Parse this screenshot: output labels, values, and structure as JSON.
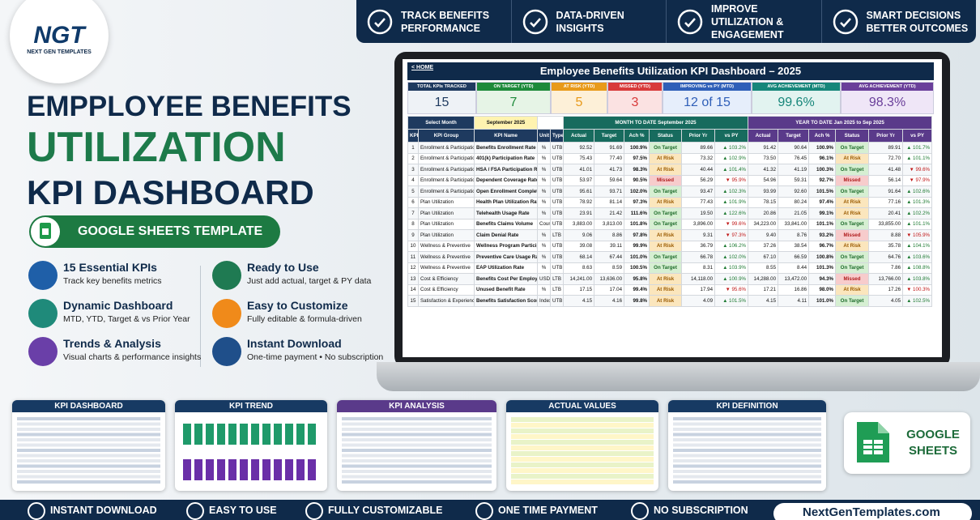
{
  "logo": {
    "mark": "NGT",
    "name": "NEXT GEN TEMPLATES"
  },
  "top_badges": [
    "TRACK BENEFITS PERFORMANCE",
    "DATA-DRIVEN INSIGHTS",
    "IMPROVE UTILIZATION & ENGAGEMENT",
    "SMART DECISIONS BETTER OUTCOMES"
  ],
  "headline": [
    "EMPPLOYEE BENEFITS",
    "UTILIZATION",
    "KPI DASHBOARD"
  ],
  "template_badge": "GOOGLE SHEETS TEMPLATE",
  "features": [
    {
      "title": "15 Essential KPIs",
      "text": "Track key benefits metrics"
    },
    {
      "title": "Dynamic Dashboard",
      "text": "MTD, YTD, Target & vs Prior Year"
    },
    {
      "title": "Trends & Analysis",
      "text": "Visual charts & performance insights"
    },
    {
      "title": "Ready to Use",
      "text": "Just add actual, target & PY data"
    },
    {
      "title": "Easy to Customize",
      "text": "Fully editable & formula-driven"
    },
    {
      "title": "Instant Download",
      "text": "One-time payment • No subscription"
    }
  ],
  "dashboard": {
    "home": "< HOME",
    "title": "Employee Benefits Utilization KPI Dashboard  –  2025",
    "cards": [
      {
        "label": "TOTAL KPIs TRACKED",
        "value": 15
      },
      {
        "label": "ON TARGET (YTD)",
        "value": 7
      },
      {
        "label": "AT RISK (YTD)",
        "value": 5
      },
      {
        "label": "MISSED (YTD)",
        "value": 3
      },
      {
        "label": "IMPROVING vs PY (MTD)",
        "value": "12 of 15"
      },
      {
        "label": "AVG ACHIEVEMENT (MTD)",
        "value": "99.6%"
      },
      {
        "label": "AVG ACHIEVEMENT (YTD)",
        "value": "98.3%"
      }
    ],
    "select_month_label": "Select Month",
    "month": "September 2025",
    "mtd_label": "MONTH TO DATE",
    "mtd_period": "September 2025",
    "ytd_label": "YEAR TO DATE",
    "ytd_period": "Jan 2025 to Sep 2025",
    "columns": [
      "KPI #",
      "KPI Group",
      "KPI Name",
      "Unit",
      "Type",
      "Actual",
      "Target",
      "Ach %",
      "Status",
      "Prior Yr",
      "vs PY",
      "Actual",
      "Target",
      "Ach %",
      "Status",
      "Prior Yr",
      "vs PY"
    ],
    "rows": [
      [
        "1",
        "Enrollment & Participation",
        "Benefits Enrollment Rate",
        "%",
        "UTB",
        "92.52",
        "91.69",
        "100.9%",
        "On Target",
        "89.66",
        "▲ 103.2%",
        "91.42",
        "90.64",
        "100.9%",
        "On Target",
        "89.91",
        "▲ 101.7%"
      ],
      [
        "2",
        "Enrollment & Participation",
        "401(k) Participation Rate",
        "%",
        "UTB",
        "75.43",
        "77.40",
        "97.5%",
        "At Risk",
        "73.32",
        "▲ 102.9%",
        "73.50",
        "76.45",
        "96.1%",
        "At Risk",
        "72.70",
        "▲ 101.1%"
      ],
      [
        "3",
        "Enrollment & Participation",
        "HSA / FSA Participation Rate",
        "%",
        "UTB",
        "41.01",
        "41.73",
        "98.3%",
        "At Risk",
        "40.44",
        "▲ 101.4%",
        "41.32",
        "41.19",
        "100.3%",
        "On Target",
        "41.48",
        "▼ 99.6%"
      ],
      [
        "4",
        "Enrollment & Participation",
        "Dependent Coverage Rate",
        "%",
        "UTB",
        "53.97",
        "59.64",
        "90.5%",
        "Missed",
        "56.29",
        "▼ 95.9%",
        "54.96",
        "59.31",
        "92.7%",
        "Missed",
        "56.14",
        "▼ 97.9%"
      ],
      [
        "5",
        "Enrollment & Participation",
        "Open Enrollment Completion Rate",
        "%",
        "UTB",
        "95.61",
        "93.71",
        "102.0%",
        "On Target",
        "93.47",
        "▲ 102.3%",
        "93.99",
        "92.60",
        "101.5%",
        "On Target",
        "91.64",
        "▲ 102.6%"
      ],
      [
        "6",
        "Plan Utilization",
        "Health Plan Utilization Rate",
        "%",
        "UTB",
        "78.92",
        "81.14",
        "97.3%",
        "At Risk",
        "77.43",
        "▲ 101.9%",
        "78.15",
        "80.24",
        "97.4%",
        "At Risk",
        "77.16",
        "▲ 101.3%"
      ],
      [
        "7",
        "Plan Utilization",
        "Telehealth Usage Rate",
        "%",
        "UTB",
        "23.91",
        "21.42",
        "111.6%",
        "On Target",
        "19.50",
        "▲ 122.6%",
        "20.86",
        "21.05",
        "99.1%",
        "At Risk",
        "20.41",
        "▲ 102.2%"
      ],
      [
        "8",
        "Plan Utilization",
        "Benefits Claims Volume",
        "Count",
        "UTB",
        "3,883.00",
        "3,813.00",
        "101.8%",
        "On Target",
        "3,896.00",
        "▼ 99.6%",
        "34,223.00",
        "33,841.00",
        "101.1%",
        "On Target",
        "33,855.00",
        "▲ 101.1%"
      ],
      [
        "9",
        "Plan Utilization",
        "Claim Denial Rate",
        "%",
        "LTB",
        "9.06",
        "8.86",
        "97.8%",
        "At Risk",
        "9.31",
        "▼ 97.3%",
        "9.40",
        "8.76",
        "93.2%",
        "Missed",
        "8.88",
        "▼ 105.9%"
      ],
      [
        "10",
        "Wellness & Preventive",
        "Wellness Program Participation",
        "%",
        "UTB",
        "39.08",
        "39.11",
        "99.9%",
        "At Risk",
        "36.79",
        "▲ 106.2%",
        "37.26",
        "38.54",
        "96.7%",
        "At Risk",
        "35.78",
        "▲ 104.1%"
      ],
      [
        "11",
        "Wellness & Preventive",
        "Preventive Care Usage Rate",
        "%",
        "UTB",
        "68.14",
        "67.44",
        "101.0%",
        "On Target",
        "66.78",
        "▲ 102.0%",
        "67.10",
        "66.59",
        "100.8%",
        "On Target",
        "64.76",
        "▲ 103.6%"
      ],
      [
        "12",
        "Wellness & Preventive",
        "EAP Utilization Rate",
        "%",
        "UTB",
        "8.63",
        "8.59",
        "100.5%",
        "On Target",
        "8.31",
        "▲ 103.9%",
        "8.55",
        "8.44",
        "101.3%",
        "On Target",
        "7.86",
        "▲ 108.8%"
      ],
      [
        "13",
        "Cost & Efficiency",
        "Benefits Cost Per Employee",
        "USD",
        "LTB",
        "14,241.00",
        "13,636.00",
        "95.8%",
        "At Risk",
        "14,118.00",
        "▲ 100.9%",
        "14,288.00",
        "13,472.00",
        "94.3%",
        "Missed",
        "13,766.00",
        "▲ 103.8%"
      ],
      [
        "14",
        "Cost & Efficiency",
        "Unused Benefit Rate",
        "%",
        "LTB",
        "17.15",
        "17.04",
        "99.4%",
        "At Risk",
        "17.94",
        "▼ 95.6%",
        "17.21",
        "16.86",
        "98.0%",
        "At Risk",
        "17.26",
        "▼ 100.3%"
      ],
      [
        "15",
        "Satisfaction & Experience",
        "Benefits Satisfaction Score",
        "Index",
        "UTB",
        "4.15",
        "4.16",
        "99.8%",
        "At Risk",
        "4.09",
        "▲ 101.5%",
        "4.15",
        "4.11",
        "101.0%",
        "On Target",
        "4.05",
        "▲ 102.5%"
      ]
    ]
  },
  "previews": [
    "KPI DASHBOARD",
    "KPI TREND",
    "KPI ANALYSIS",
    "ACTUAL VALUES",
    "KPI DEFINITION"
  ],
  "sheets_badge": "GOOGLE SHEETS",
  "footer": {
    "items": [
      "INSTANT DOWNLOAD",
      "EASY TO USE",
      "FULLY CUSTOMIZABLE",
      "ONE TIME PAYMENT",
      "NO SUBSCRIPTION"
    ],
    "url": "NextGenTemplates.com"
  }
}
